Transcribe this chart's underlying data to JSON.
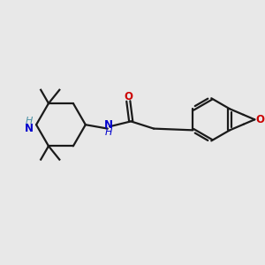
{
  "background_color": "#e8e8e8",
  "bond_color": "#1a1a1a",
  "N_color": "#0000cd",
  "NH_color": "#4a90a4",
  "O_color": "#cc0000",
  "line_width": 1.6,
  "font_size": 8.5,
  "figsize": [
    3.0,
    3.0
  ],
  "dpi": 100,
  "xlim": [
    0,
    10
  ],
  "ylim": [
    0,
    10
  ]
}
